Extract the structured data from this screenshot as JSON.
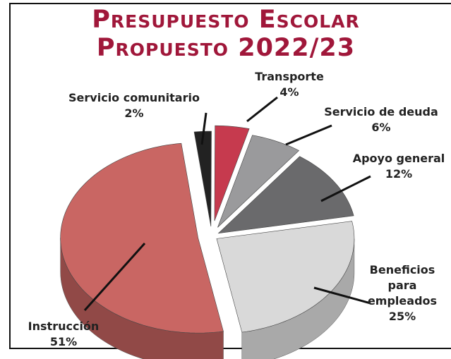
{
  "chart_data": {
    "type": "pie",
    "title": "Presupuesto Escolar Propuesto 2022/23",
    "categories": [
      "Servicio comunitario",
      "Transporte",
      "Servicio de deuda",
      "Apoyo general",
      "Beneficios para empleados",
      "Instrucción"
    ],
    "values": [
      2,
      4,
      6,
      12,
      25,
      51
    ],
    "value_labels": [
      "2%",
      "4%",
      "6%",
      "12%",
      "25%",
      "51%"
    ],
    "colors": [
      "#222222",
      "#c63a4e",
      "#9a9a9c",
      "#6a6a6c",
      "#d9d9d9",
      "#c96663"
    ]
  }
}
